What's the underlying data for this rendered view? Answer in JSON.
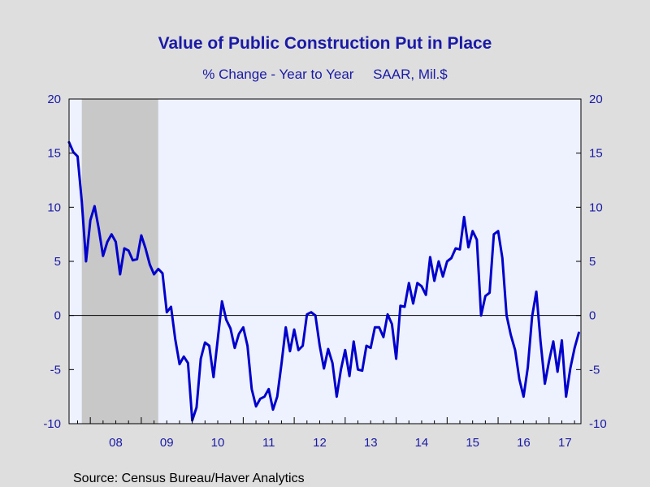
{
  "chart_data": {
    "type": "line",
    "title": "Value of Public Construction Put in Place",
    "subtitle": "% Change - Year to Year     SAAR, Mil.$",
    "source": "Source:  Census Bureau/Haver Analytics",
    "ylim": [
      -10,
      20
    ],
    "yticks": [
      "20",
      "15",
      "10",
      "5",
      "0",
      "-5",
      "-10"
    ],
    "xlim": [
      2007.583,
      2017.625
    ],
    "xtick_labels": [
      "08",
      "09",
      "10",
      "11",
      "12",
      "13",
      "14",
      "15",
      "16",
      "17"
    ],
    "grid": false,
    "zero_line": true,
    "recession_shading": [
      [
        2007.833,
        2009.333
      ]
    ],
    "colors": {
      "line": "#0000cc",
      "text": "#1a1aa6",
      "plot_bg": "#eef2ff",
      "recession": "#c8c8c8",
      "frame": "#dedede"
    },
    "series": [
      {
        "x_start": "2007-08",
        "frequency": "monthly",
        "values": [
          16.0,
          15.1,
          14.7,
          10.5,
          5.0,
          8.8,
          10.1,
          8.0,
          5.5,
          6.8,
          7.5,
          6.8,
          3.8,
          6.2,
          6.0,
          5.1,
          5.2,
          7.4,
          6.2,
          4.7,
          3.8,
          4.3,
          3.9,
          0.3,
          0.8,
          -2.2,
          -4.5,
          -3.8,
          -4.4,
          -9.7,
          -8.5,
          -4.0,
          -2.5,
          -2.8,
          -5.7,
          -2.2,
          1.3,
          -0.4,
          -1.2,
          -3.0,
          -1.7,
          -1.1,
          -2.8,
          -6.8,
          -8.4,
          -7.7,
          -7.5,
          -6.8,
          -8.7,
          -7.5,
          -4.5,
          -1.1,
          -3.3,
          -1.3,
          -3.2,
          -2.8,
          0.1,
          0.3,
          0.0,
          -2.8,
          -4.9,
          -3.1,
          -4.4,
          -7.5,
          -5.0,
          -3.2,
          -5.6,
          -2.4,
          -5.0,
          -5.1,
          -2.8,
          -3.0,
          -1.1,
          -1.1,
          -2.0,
          0.1,
          -0.8,
          -4.0,
          0.9,
          0.8,
          3.0,
          1.1,
          3.0,
          2.7,
          1.9,
          5.4,
          3.2,
          5.0,
          3.6,
          5.0,
          5.3,
          6.2,
          6.1,
          9.1,
          6.3,
          7.8,
          7.0,
          0.0,
          1.8,
          2.1,
          7.5,
          7.8,
          5.3,
          0.0,
          -1.8,
          -3.2,
          -5.9,
          -7.5,
          -4.8,
          -0.1,
          2.2,
          -2.4,
          -6.3,
          -4.2,
          -2.4,
          -5.2,
          -2.3,
          -7.5,
          -4.9,
          -3.0,
          -1.6
        ]
      }
    ]
  }
}
